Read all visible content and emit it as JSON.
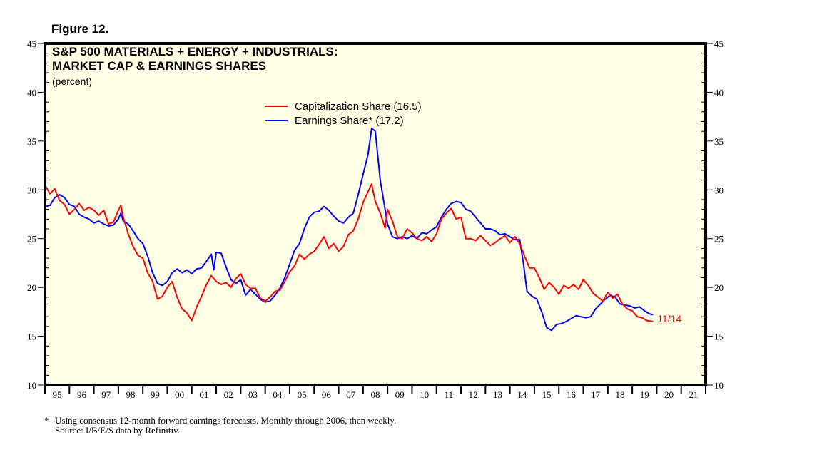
{
  "figure_label": "Figure 12.",
  "chart_data": {
    "type": "line",
    "title": "S&P 500 MATERIALS + ENERGY + INDUSTRIALS:",
    "subtitle": "MARKET CAP & EARNINGS SHARES",
    "units": "(percent)",
    "xlabel": "",
    "ylabel": "percent",
    "ylim": [
      10,
      45
    ],
    "xlim": [
      1995,
      2022
    ],
    "y_ticks": [
      10,
      15,
      20,
      25,
      30,
      35,
      40,
      45
    ],
    "y_minor_step": 1,
    "x_tick_labels": [
      "95",
      "96",
      "97",
      "98",
      "99",
      "00",
      "01",
      "02",
      "03",
      "04",
      "05",
      "06",
      "07",
      "08",
      "09",
      "10",
      "11",
      "12",
      "13",
      "14",
      "15",
      "16",
      "17",
      "18",
      "19",
      "20",
      "21"
    ],
    "grid": false,
    "legend_position": "top-center",
    "colors": {
      "background": "#ffffe6",
      "capitalization": "#ff0000",
      "earnings": "#0000ff"
    },
    "series": [
      {
        "name": "Capitalization Share (16.5)",
        "color": "#ff0000",
        "points": [
          [
            1995.0,
            30.5
          ],
          [
            1995.2,
            29.6
          ],
          [
            1995.4,
            30.1
          ],
          [
            1995.6,
            28.9
          ],
          [
            1995.8,
            28.5
          ],
          [
            1996.0,
            27.5
          ],
          [
            1996.2,
            28.0
          ],
          [
            1996.4,
            28.6
          ],
          [
            1996.6,
            27.9
          ],
          [
            1996.8,
            28.2
          ],
          [
            1997.0,
            27.9
          ],
          [
            1997.2,
            27.4
          ],
          [
            1997.4,
            27.9
          ],
          [
            1997.6,
            26.5
          ],
          [
            1997.8,
            26.7
          ],
          [
            1998.0,
            27.9
          ],
          [
            1998.1,
            28.4
          ],
          [
            1998.2,
            27.2
          ],
          [
            1998.4,
            25.5
          ],
          [
            1998.6,
            24.2
          ],
          [
            1998.8,
            23.3
          ],
          [
            1999.0,
            23.0
          ],
          [
            1999.2,
            21.5
          ],
          [
            1999.4,
            20.6
          ],
          [
            1999.6,
            18.8
          ],
          [
            1999.8,
            19.1
          ],
          [
            2000.0,
            20.0
          ],
          [
            2000.2,
            20.6
          ],
          [
            2000.4,
            19.0
          ],
          [
            2000.6,
            17.8
          ],
          [
            2000.8,
            17.4
          ],
          [
            2001.0,
            16.6
          ],
          [
            2001.2,
            18.0
          ],
          [
            2001.4,
            19.1
          ],
          [
            2001.6,
            20.3
          ],
          [
            2001.8,
            21.2
          ],
          [
            2002.0,
            20.6
          ],
          [
            2002.2,
            20.3
          ],
          [
            2002.4,
            20.5
          ],
          [
            2002.6,
            20.0
          ],
          [
            2002.8,
            20.9
          ],
          [
            2003.0,
            21.4
          ],
          [
            2003.2,
            20.3
          ],
          [
            2003.4,
            19.9
          ],
          [
            2003.6,
            19.9
          ],
          [
            2003.8,
            18.9
          ],
          [
            2004.0,
            18.6
          ],
          [
            2004.2,
            19.0
          ],
          [
            2004.4,
            19.6
          ],
          [
            2004.6,
            19.7
          ],
          [
            2004.8,
            20.6
          ],
          [
            2005.0,
            21.6
          ],
          [
            2005.2,
            22.2
          ],
          [
            2005.4,
            23.4
          ],
          [
            2005.6,
            22.9
          ],
          [
            2005.8,
            23.4
          ],
          [
            2006.0,
            23.7
          ],
          [
            2006.2,
            24.4
          ],
          [
            2006.4,
            25.2
          ],
          [
            2006.6,
            24.0
          ],
          [
            2006.8,
            24.5
          ],
          [
            2007.0,
            23.7
          ],
          [
            2007.2,
            24.2
          ],
          [
            2007.4,
            25.4
          ],
          [
            2007.6,
            25.8
          ],
          [
            2007.8,
            27.0
          ],
          [
            2008.0,
            28.7
          ],
          [
            2008.2,
            29.8
          ],
          [
            2008.35,
            30.6
          ],
          [
            2008.5,
            28.8
          ],
          [
            2008.7,
            27.6
          ],
          [
            2008.9,
            26.1
          ],
          [
            2009.0,
            28.0
          ],
          [
            2009.2,
            26.8
          ],
          [
            2009.4,
            25.2
          ],
          [
            2009.6,
            25.0
          ],
          [
            2009.8,
            26.0
          ],
          [
            2010.0,
            25.6
          ],
          [
            2010.2,
            25.0
          ],
          [
            2010.4,
            24.8
          ],
          [
            2010.6,
            25.2
          ],
          [
            2010.8,
            24.7
          ],
          [
            2011.0,
            25.5
          ],
          [
            2011.2,
            27.0
          ],
          [
            2011.4,
            27.6
          ],
          [
            2011.6,
            28.1
          ],
          [
            2011.8,
            27.0
          ],
          [
            2012.0,
            27.2
          ],
          [
            2012.2,
            25.0
          ],
          [
            2012.4,
            25.0
          ],
          [
            2012.6,
            24.8
          ],
          [
            2012.8,
            25.3
          ],
          [
            2013.0,
            24.8
          ],
          [
            2013.2,
            24.3
          ],
          [
            2013.4,
            24.6
          ],
          [
            2013.6,
            25.0
          ],
          [
            2013.8,
            25.3
          ],
          [
            2014.0,
            24.6
          ],
          [
            2014.2,
            25.2
          ],
          [
            2014.4,
            24.5
          ],
          [
            2014.6,
            23.2
          ],
          [
            2014.8,
            22.0
          ],
          [
            2015.0,
            22.0
          ],
          [
            2015.2,
            21.0
          ],
          [
            2015.4,
            19.8
          ],
          [
            2015.6,
            20.5
          ],
          [
            2015.8,
            20.0
          ],
          [
            2016.0,
            19.3
          ],
          [
            2016.2,
            20.2
          ],
          [
            2016.4,
            19.9
          ],
          [
            2016.6,
            20.3
          ],
          [
            2016.8,
            19.8
          ],
          [
            2017.0,
            20.8
          ],
          [
            2017.2,
            20.2
          ],
          [
            2017.4,
            19.4
          ],
          [
            2017.6,
            19.0
          ],
          [
            2017.8,
            18.6
          ],
          [
            2018.0,
            19.5
          ],
          [
            2018.2,
            18.9
          ],
          [
            2018.4,
            19.3
          ],
          [
            2018.6,
            18.3
          ],
          [
            2018.8,
            17.8
          ],
          [
            2019.0,
            17.6
          ],
          [
            2019.2,
            17.0
          ],
          [
            2019.4,
            16.9
          ],
          [
            2019.6,
            16.6
          ],
          [
            2019.85,
            16.5
          ]
        ]
      },
      {
        "name": "Earnings Share* (17.2)",
        "color": "#0000ff",
        "points": [
          [
            1995.0,
            28.3
          ],
          [
            1995.2,
            28.4
          ],
          [
            1995.4,
            29.2
          ],
          [
            1995.6,
            29.5
          ],
          [
            1995.8,
            29.2
          ],
          [
            1996.0,
            28.5
          ],
          [
            1996.2,
            28.3
          ],
          [
            1996.4,
            27.5
          ],
          [
            1996.6,
            27.2
          ],
          [
            1996.8,
            27.0
          ],
          [
            1997.0,
            26.6
          ],
          [
            1997.2,
            26.8
          ],
          [
            1997.4,
            26.5
          ],
          [
            1997.6,
            26.3
          ],
          [
            1997.8,
            26.4
          ],
          [
            1998.0,
            27.0
          ],
          [
            1998.1,
            27.6
          ],
          [
            1998.2,
            26.8
          ],
          [
            1998.4,
            26.5
          ],
          [
            1998.6,
            25.8
          ],
          [
            1998.8,
            25.0
          ],
          [
            1999.0,
            24.5
          ],
          [
            1999.2,
            23.2
          ],
          [
            1999.4,
            21.5
          ],
          [
            1999.6,
            20.4
          ],
          [
            1999.8,
            20.2
          ],
          [
            2000.0,
            20.6
          ],
          [
            2000.2,
            21.5
          ],
          [
            2000.4,
            21.9
          ],
          [
            2000.6,
            21.5
          ],
          [
            2000.8,
            21.8
          ],
          [
            2001.0,
            21.4
          ],
          [
            2001.2,
            21.9
          ],
          [
            2001.4,
            22.0
          ],
          [
            2001.6,
            22.7
          ],
          [
            2001.8,
            23.4
          ],
          [
            2001.9,
            21.8
          ],
          [
            2002.0,
            23.6
          ],
          [
            2002.2,
            23.5
          ],
          [
            2002.4,
            22.1
          ],
          [
            2002.6,
            20.8
          ],
          [
            2002.8,
            20.4
          ],
          [
            2003.0,
            20.8
          ],
          [
            2003.2,
            19.2
          ],
          [
            2003.4,
            19.8
          ],
          [
            2003.6,
            19.3
          ],
          [
            2003.8,
            18.8
          ],
          [
            2004.0,
            18.5
          ],
          [
            2004.2,
            18.6
          ],
          [
            2004.4,
            19.2
          ],
          [
            2004.6,
            19.9
          ],
          [
            2004.8,
            21.0
          ],
          [
            2005.0,
            22.4
          ],
          [
            2005.2,
            23.8
          ],
          [
            2005.4,
            24.5
          ],
          [
            2005.6,
            26.0
          ],
          [
            2005.8,
            27.2
          ],
          [
            2006.0,
            27.7
          ],
          [
            2006.2,
            27.8
          ],
          [
            2006.4,
            28.3
          ],
          [
            2006.6,
            27.9
          ],
          [
            2006.8,
            27.3
          ],
          [
            2007.0,
            26.8
          ],
          [
            2007.2,
            26.6
          ],
          [
            2007.4,
            27.2
          ],
          [
            2007.6,
            27.6
          ],
          [
            2007.8,
            29.5
          ],
          [
            2008.0,
            31.6
          ],
          [
            2008.2,
            33.6
          ],
          [
            2008.35,
            36.3
          ],
          [
            2008.5,
            36.0
          ],
          [
            2008.7,
            31.0
          ],
          [
            2008.9,
            28.0
          ],
          [
            2009.0,
            26.5
          ],
          [
            2009.2,
            25.2
          ],
          [
            2009.4,
            25.0
          ],
          [
            2009.6,
            25.2
          ],
          [
            2009.8,
            25.0
          ],
          [
            2010.0,
            25.3
          ],
          [
            2010.2,
            25.0
          ],
          [
            2010.4,
            25.6
          ],
          [
            2010.6,
            25.5
          ],
          [
            2010.8,
            25.9
          ],
          [
            2011.0,
            26.2
          ],
          [
            2011.2,
            27.2
          ],
          [
            2011.4,
            28.0
          ],
          [
            2011.6,
            28.6
          ],
          [
            2011.8,
            28.8
          ],
          [
            2012.0,
            28.7
          ],
          [
            2012.2,
            28.0
          ],
          [
            2012.4,
            27.8
          ],
          [
            2012.6,
            27.2
          ],
          [
            2012.8,
            26.6
          ],
          [
            2013.0,
            26.0
          ],
          [
            2013.2,
            26.0
          ],
          [
            2013.4,
            25.8
          ],
          [
            2013.6,
            25.4
          ],
          [
            2013.8,
            25.5
          ],
          [
            2014.0,
            25.2
          ],
          [
            2014.2,
            24.9
          ],
          [
            2014.4,
            24.9
          ],
          [
            2014.55,
            22.5
          ],
          [
            2014.7,
            19.6
          ],
          [
            2014.9,
            19.1
          ],
          [
            2015.1,
            18.8
          ],
          [
            2015.3,
            17.5
          ],
          [
            2015.5,
            15.9
          ],
          [
            2015.7,
            15.6
          ],
          [
            2015.9,
            16.2
          ],
          [
            2016.1,
            16.3
          ],
          [
            2016.3,
            16.5
          ],
          [
            2016.5,
            16.8
          ],
          [
            2016.7,
            17.1
          ],
          [
            2016.9,
            17.0
          ],
          [
            2017.1,
            16.9
          ],
          [
            2017.3,
            17.0
          ],
          [
            2017.5,
            17.8
          ],
          [
            2017.7,
            18.3
          ],
          [
            2017.9,
            18.8
          ],
          [
            2018.1,
            19.2
          ],
          [
            2018.3,
            19.0
          ],
          [
            2018.5,
            18.3
          ],
          [
            2018.7,
            18.2
          ],
          [
            2018.9,
            18.1
          ],
          [
            2019.1,
            17.9
          ],
          [
            2019.3,
            18.0
          ],
          [
            2019.5,
            17.6
          ],
          [
            2019.7,
            17.3
          ],
          [
            2019.85,
            17.2
          ]
        ]
      }
    ],
    "annotations": [
      {
        "text": "11/14",
        "x": 2019.85,
        "y": 16.5,
        "color": "#ff0000"
      }
    ]
  },
  "legend": {
    "items": [
      {
        "label": "Capitalization Share (16.5)",
        "color": "#ff0000"
      },
      {
        "label": "Earnings Share* (17.2)",
        "color": "#0000ff"
      }
    ]
  },
  "footnote": {
    "line1_marker": "*",
    "line1": "Using consensus 12-month forward earnings forecasts. Monthly through 2006, then weekly.",
    "line2": "Source: I/B/E/S data by Refinitiv."
  }
}
